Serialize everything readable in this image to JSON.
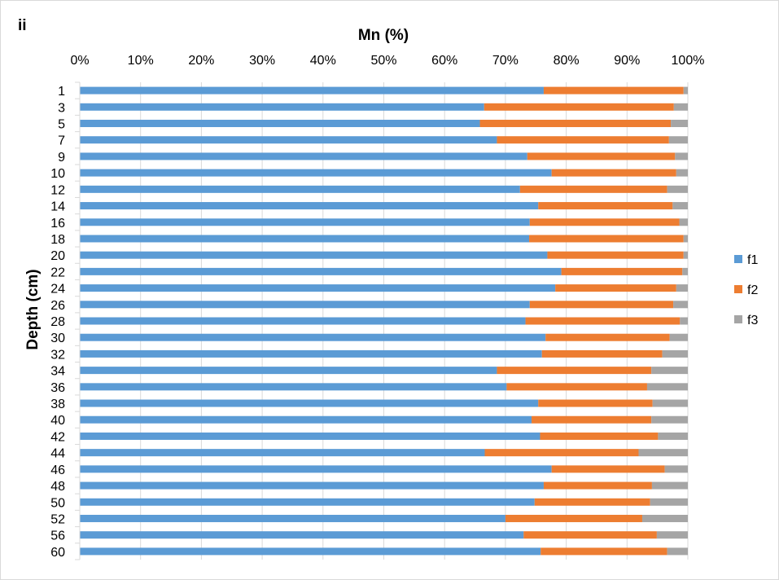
{
  "panel_label": "ii",
  "chart_data": {
    "type": "bar",
    "orientation": "horizontal",
    "stacked": "percent",
    "title": "Mn (%)",
    "ylabel": "Depth (cm)",
    "xlim": [
      0,
      100
    ],
    "x_ticks": [
      "0%",
      "10%",
      "20%",
      "30%",
      "40%",
      "50%",
      "60%",
      "70%",
      "80%",
      "90%",
      "100%"
    ],
    "grid": true,
    "legend_position": "right",
    "categories": [
      "1",
      "3",
      "5",
      "7",
      "9",
      "10",
      "12",
      "14",
      "16",
      "18",
      "20",
      "22",
      "24",
      "26",
      "28",
      "30",
      "32",
      "34",
      "36",
      "38",
      "40",
      "42",
      "44",
      "46",
      "48",
      "50",
      "52",
      "56",
      "60"
    ],
    "series": [
      {
        "name": "f1",
        "color": "#5b9bd5",
        "values": [
          76.3,
          66.5,
          65.8,
          68.6,
          73.6,
          77.6,
          72.4,
          75.4,
          74.0,
          73.9,
          76.9,
          79.2,
          78.2,
          74.0,
          73.3,
          76.6,
          76.0,
          68.6,
          70.2,
          75.4,
          74.3,
          75.7,
          66.6,
          77.6,
          76.3,
          74.8,
          70.0,
          73.0,
          75.8
        ]
      },
      {
        "name": "f2",
        "color": "#ed7d31",
        "values": [
          23.0,
          31.2,
          31.4,
          28.3,
          24.3,
          20.5,
          24.2,
          22.1,
          24.6,
          25.4,
          22.4,
          19.9,
          19.9,
          23.6,
          25.4,
          20.4,
          19.8,
          25.4,
          23.1,
          18.8,
          19.7,
          19.4,
          25.3,
          18.6,
          17.8,
          19.0,
          22.5,
          21.9,
          20.8
        ]
      },
      {
        "name": "f3",
        "color": "#a5a5a5",
        "values": [
          0.7,
          2.3,
          2.8,
          3.1,
          2.1,
          1.9,
          3.4,
          2.5,
          1.4,
          0.7,
          0.7,
          0.9,
          1.9,
          2.4,
          1.3,
          3.0,
          4.2,
          6.0,
          6.7,
          5.8,
          6.0,
          4.9,
          8.1,
          3.8,
          5.9,
          6.2,
          7.5,
          5.1,
          3.4
        ]
      }
    ]
  }
}
